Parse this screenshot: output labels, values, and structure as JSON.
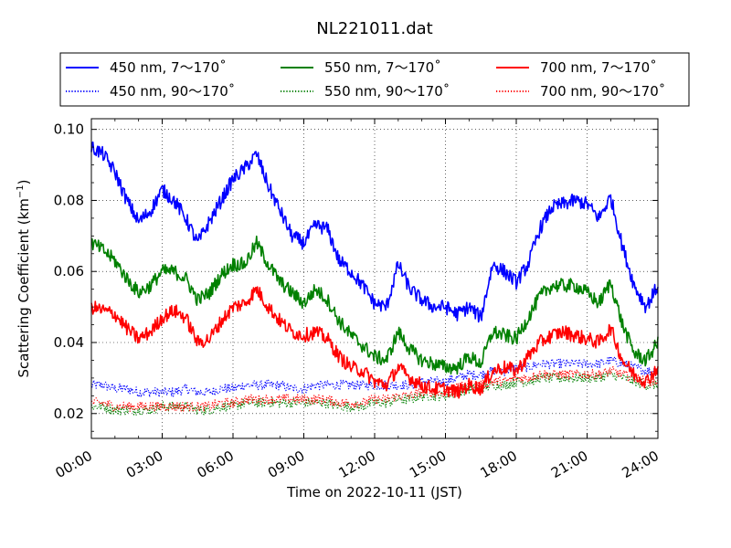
{
  "chart_data": {
    "type": "line",
    "title": "NL221011.dat",
    "xlabel": "Time on 2022-10-11 (JST)",
    "ylabel_main": "Scattering Coefficient (km",
    "ylabel_sup": "−1",
    "ylabel_close": ")",
    "xlim": [
      0,
      24
    ],
    "ylim": [
      0.013,
      0.103
    ],
    "x_ticks": [
      0,
      3,
      6,
      9,
      12,
      15,
      18,
      21,
      24
    ],
    "x_tick_labels": [
      "00:00",
      "03:00",
      "06:00",
      "09:00",
      "12:00",
      "15:00",
      "18:00",
      "21:00",
      "24:00"
    ],
    "y_ticks": [
      0.02,
      0.04,
      0.06,
      0.08,
      0.1
    ],
    "y_tick_labels": [
      "0.02",
      "0.04",
      "0.06",
      "0.08",
      "0.10"
    ],
    "grid": true,
    "legend_placement": "top, outside plot, three columns",
    "x": [
      0,
      0.5,
      1,
      1.5,
      2,
      2.5,
      3,
      3.5,
      4,
      4.5,
      5,
      5.5,
      6,
      6.5,
      7,
      7.5,
      8,
      8.5,
      9,
      9.5,
      10,
      10.5,
      11,
      11.5,
      12,
      12.5,
      13,
      13.5,
      14,
      14.5,
      15,
      15.5,
      16,
      16.5,
      17,
      17.5,
      18,
      18.5,
      19,
      19.5,
      20,
      20.5,
      21,
      21.5,
      22,
      22.5,
      23,
      23.5,
      24
    ],
    "series": [
      {
        "name": "450 nm, 7～170˚",
        "color": "#0000ff",
        "style": "solid",
        "values": [
          0.095,
          0.093,
          0.088,
          0.08,
          0.074,
          0.077,
          0.083,
          0.08,
          0.075,
          0.068,
          0.074,
          0.08,
          0.086,
          0.089,
          0.093,
          0.084,
          0.077,
          0.07,
          0.068,
          0.073,
          0.072,
          0.063,
          0.06,
          0.056,
          0.051,
          0.05,
          0.062,
          0.055,
          0.052,
          0.05,
          0.05,
          0.048,
          0.05,
          0.047,
          0.062,
          0.06,
          0.057,
          0.062,
          0.072,
          0.078,
          0.079,
          0.08,
          0.079,
          0.075,
          0.081,
          0.067,
          0.056,
          0.05,
          0.056
        ]
      },
      {
        "name": "450 nm, 90～170˚",
        "color": "#0000ff",
        "style": "dotted",
        "values": [
          0.028,
          0.028,
          0.027,
          0.027,
          0.026,
          0.026,
          0.026,
          0.026,
          0.027,
          0.026,
          0.026,
          0.027,
          0.027,
          0.028,
          0.028,
          0.028,
          0.028,
          0.027,
          0.027,
          0.028,
          0.028,
          0.028,
          0.028,
          0.028,
          0.028,
          0.028,
          0.028,
          0.028,
          0.029,
          0.029,
          0.029,
          0.03,
          0.031,
          0.031,
          0.032,
          0.032,
          0.033,
          0.033,
          0.034,
          0.034,
          0.034,
          0.034,
          0.034,
          0.034,
          0.035,
          0.034,
          0.033,
          0.032,
          0.032
        ]
      },
      {
        "name": "550 nm, 7～170˚",
        "color": "#008000",
        "style": "solid",
        "values": [
          0.068,
          0.066,
          0.063,
          0.058,
          0.054,
          0.056,
          0.06,
          0.06,
          0.058,
          0.052,
          0.054,
          0.059,
          0.062,
          0.062,
          0.068,
          0.062,
          0.057,
          0.054,
          0.051,
          0.055,
          0.052,
          0.046,
          0.042,
          0.039,
          0.036,
          0.035,
          0.043,
          0.038,
          0.035,
          0.034,
          0.033,
          0.033,
          0.036,
          0.034,
          0.043,
          0.042,
          0.041,
          0.047,
          0.053,
          0.056,
          0.056,
          0.056,
          0.054,
          0.051,
          0.057,
          0.045,
          0.037,
          0.035,
          0.04
        ]
      },
      {
        "name": "550 nm, 90～170˚",
        "color": "#008000",
        "style": "dotted",
        "values": [
          0.022,
          0.022,
          0.021,
          0.021,
          0.021,
          0.021,
          0.022,
          0.022,
          0.022,
          0.021,
          0.021,
          0.022,
          0.022,
          0.023,
          0.023,
          0.023,
          0.023,
          0.023,
          0.023,
          0.023,
          0.023,
          0.022,
          0.022,
          0.022,
          0.023,
          0.023,
          0.024,
          0.024,
          0.025,
          0.025,
          0.025,
          0.026,
          0.027,
          0.027,
          0.028,
          0.028,
          0.029,
          0.029,
          0.03,
          0.03,
          0.03,
          0.03,
          0.03,
          0.03,
          0.031,
          0.03,
          0.029,
          0.028,
          0.028
        ]
      },
      {
        "name": "700 nm, 7～170˚",
        "color": "#ff0000",
        "style": "solid",
        "values": [
          0.05,
          0.049,
          0.048,
          0.044,
          0.041,
          0.043,
          0.047,
          0.049,
          0.047,
          0.04,
          0.041,
          0.046,
          0.05,
          0.051,
          0.055,
          0.05,
          0.046,
          0.043,
          0.042,
          0.043,
          0.041,
          0.036,
          0.033,
          0.032,
          0.029,
          0.028,
          0.033,
          0.03,
          0.028,
          0.027,
          0.027,
          0.026,
          0.028,
          0.027,
          0.032,
          0.033,
          0.032,
          0.036,
          0.04,
          0.042,
          0.043,
          0.042,
          0.041,
          0.04,
          0.044,
          0.035,
          0.031,
          0.029,
          0.033
        ]
      },
      {
        "name": "700 nm, 90～170˚",
        "color": "#ff0000",
        "style": "dotted",
        "values": [
          0.023,
          0.023,
          0.022,
          0.022,
          0.022,
          0.022,
          0.022,
          0.022,
          0.022,
          0.022,
          0.022,
          0.023,
          0.023,
          0.024,
          0.024,
          0.024,
          0.024,
          0.024,
          0.024,
          0.024,
          0.024,
          0.023,
          0.023,
          0.023,
          0.024,
          0.024,
          0.025,
          0.025,
          0.026,
          0.026,
          0.026,
          0.027,
          0.028,
          0.028,
          0.029,
          0.029,
          0.03,
          0.03,
          0.031,
          0.031,
          0.031,
          0.031,
          0.031,
          0.031,
          0.032,
          0.031,
          0.03,
          0.029,
          0.029
        ]
      }
    ]
  }
}
